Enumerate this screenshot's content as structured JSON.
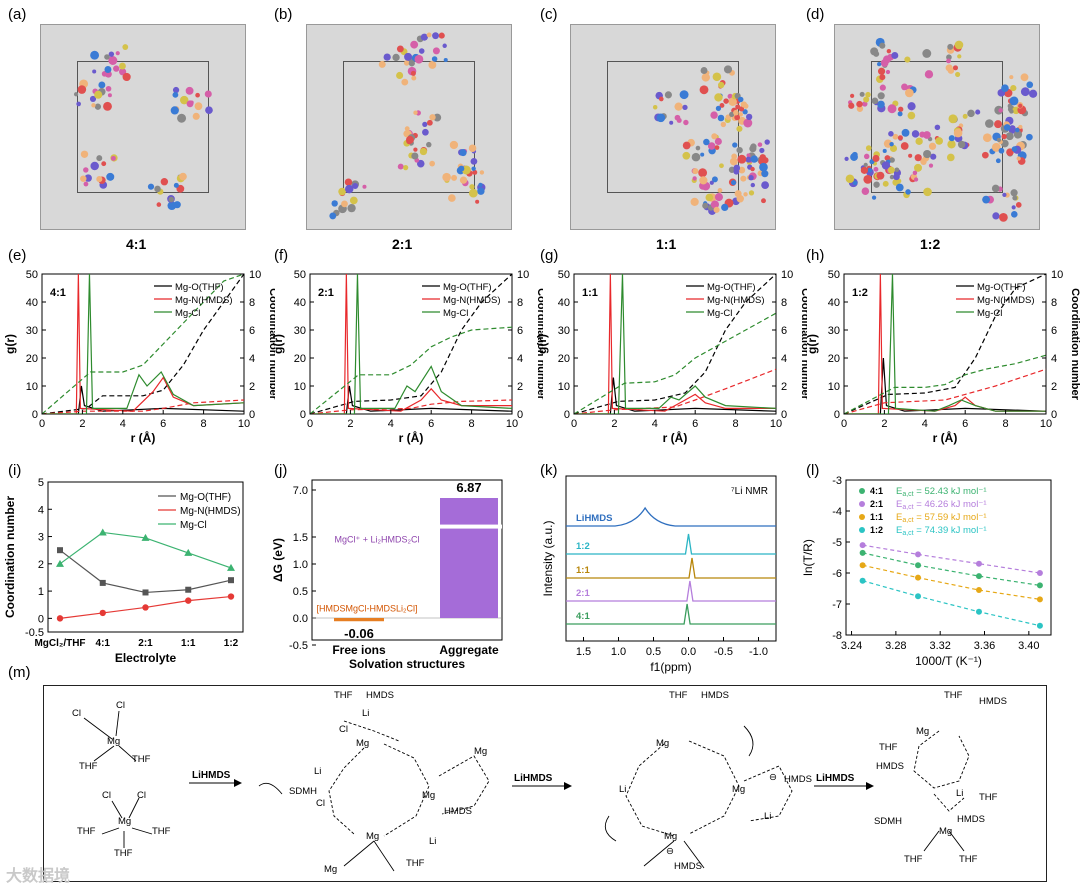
{
  "panels": {
    "a": {
      "label": "(a)",
      "caption": "4:1"
    },
    "b": {
      "label": "(b)",
      "caption": "2:1"
    },
    "c": {
      "label": "(c)",
      "caption": "1:1"
    },
    "d": {
      "label": "(d)",
      "caption": "1:2"
    },
    "e": {
      "label": "(e)"
    },
    "f": {
      "label": "(f)"
    },
    "g": {
      "label": "(g)"
    },
    "h": {
      "label": "(h)"
    },
    "i": {
      "label": "(i)"
    },
    "j": {
      "label": "(j)"
    },
    "k": {
      "label": "(k)"
    },
    "l": {
      "label": "(l)"
    },
    "m": {
      "label": "(m)"
    }
  },
  "chart_data": [
    {
      "type": "line",
      "id": "e",
      "ratio": "4:1",
      "xlabel": "r (Å)",
      "ylabel": "g(r)",
      "y2label": "Coordination number",
      "xlim": [
        0,
        10
      ],
      "ylim": [
        0,
        50
      ],
      "y2lim": [
        0,
        10
      ],
      "legend": [
        "Mg-O(THF)",
        "Mg-N(HMDS)",
        "Mg-Cl"
      ],
      "xticks": [
        "0",
        "2",
        "4",
        "6",
        "8",
        "10"
      ],
      "yticks": [
        "0",
        "10",
        "20",
        "30",
        "40",
        "50"
      ],
      "y2ticks": [
        "0",
        "2",
        "4",
        "6",
        "8",
        "10"
      ],
      "gr": {
        "O": [
          [
            0,
            0
          ],
          [
            1.8,
            0
          ],
          [
            1.95,
            10
          ],
          [
            2.1,
            3
          ],
          [
            3,
            1
          ],
          [
            6,
            2
          ],
          [
            10,
            1
          ]
        ],
        "N": [
          [
            0,
            0
          ],
          [
            1.7,
            0
          ],
          [
            1.8,
            50
          ],
          [
            1.9,
            2
          ],
          [
            4.5,
            1
          ],
          [
            5.5,
            8
          ],
          [
            6,
            13
          ],
          [
            6.5,
            6
          ],
          [
            7.5,
            3
          ],
          [
            10,
            4
          ]
        ],
        "Cl": [
          [
            0,
            0
          ],
          [
            2.2,
            0
          ],
          [
            2.35,
            50
          ],
          [
            2.5,
            2
          ],
          [
            4.2,
            2
          ],
          [
            4.8,
            14
          ],
          [
            5.2,
            10
          ],
          [
            5.9,
            15
          ],
          [
            6.5,
            7
          ],
          [
            7.5,
            3
          ],
          [
            10,
            4
          ]
        ]
      },
      "cn": {
        "O": [
          [
            0,
            0
          ],
          [
            2.2,
            0.4
          ],
          [
            3,
            1.3
          ],
          [
            5,
            1.3
          ],
          [
            6,
            1.7
          ],
          [
            7,
            3.5
          ],
          [
            8,
            6
          ],
          [
            9,
            8
          ],
          [
            10,
            10
          ]
        ],
        "N": [
          [
            0,
            0
          ],
          [
            2,
            0.2
          ],
          [
            3,
            0.2
          ],
          [
            5,
            0.2
          ],
          [
            6,
            0.4
          ],
          [
            7.5,
            0.8
          ],
          [
            10,
            1
          ]
        ],
        "Cl": [
          [
            0,
            0
          ],
          [
            2.4,
            3
          ],
          [
            4,
            3
          ],
          [
            5,
            3.5
          ],
          [
            6,
            5
          ],
          [
            7,
            6.5
          ],
          [
            8,
            8
          ],
          [
            9,
            9.5
          ],
          [
            10,
            10
          ]
        ]
      }
    },
    {
      "type": "line",
      "id": "f",
      "ratio": "2:1",
      "xlabel": "r (Å)",
      "ylabel": "g(r)",
      "y2label": "Coordination number",
      "xlim": [
        0,
        10
      ],
      "ylim": [
        0,
        50
      ],
      "y2lim": [
        0,
        10
      ],
      "legend": [
        "Mg-O(THF)",
        "Mg-N(HMDS)",
        "Mg-Cl"
      ],
      "xticks": [
        "0",
        "2",
        "4",
        "6",
        "8",
        "10"
      ],
      "yticks": [
        "0",
        "10",
        "20",
        "30",
        "40",
        "50"
      ],
      "y2ticks": [
        "0",
        "2",
        "4",
        "6",
        "8",
        "10"
      ],
      "gr": {
        "O": [
          [
            0,
            0
          ],
          [
            1.8,
            0
          ],
          [
            1.95,
            10
          ],
          [
            2.1,
            3
          ],
          [
            3,
            1
          ],
          [
            6,
            2
          ],
          [
            10,
            1
          ]
        ],
        "N": [
          [
            0,
            0
          ],
          [
            1.7,
            0
          ],
          [
            1.8,
            50
          ],
          [
            1.9,
            2
          ],
          [
            4.5,
            1
          ],
          [
            5.5,
            5
          ],
          [
            6,
            9
          ],
          [
            6.5,
            5
          ],
          [
            7.5,
            3
          ],
          [
            10,
            3
          ]
        ],
        "Cl": [
          [
            0,
            0
          ],
          [
            2.2,
            0
          ],
          [
            2.35,
            50
          ],
          [
            2.5,
            2
          ],
          [
            4.2,
            2
          ],
          [
            4.8,
            10
          ],
          [
            5.2,
            8
          ],
          [
            6,
            17
          ],
          [
            6.5,
            8
          ],
          [
            7.5,
            3
          ],
          [
            10,
            2
          ]
        ]
      },
      "cn": {
        "O": [
          [
            0,
            0
          ],
          [
            2.2,
            0.9
          ],
          [
            4,
            1
          ],
          [
            5.5,
            1.3
          ],
          [
            6.5,
            3
          ],
          [
            7.5,
            6
          ],
          [
            8.5,
            8
          ],
          [
            10,
            10
          ]
        ],
        "N": [
          [
            0,
            0
          ],
          [
            2,
            0.3
          ],
          [
            5,
            0.4
          ],
          [
            6,
            0.7
          ],
          [
            7.5,
            0.9
          ],
          [
            10,
            1
          ]
        ],
        "Cl": [
          [
            0,
            0
          ],
          [
            2.4,
            2.8
          ],
          [
            4,
            2.8
          ],
          [
            5,
            3.5
          ],
          [
            6,
            4.8
          ],
          [
            7,
            5.5
          ],
          [
            8,
            6
          ],
          [
            10,
            6.2
          ]
        ]
      }
    },
    {
      "type": "line",
      "id": "g",
      "ratio": "1:1",
      "xlabel": "r (Å)",
      "ylabel": "g(r)",
      "y2label": "Coordination number",
      "xlim": [
        0,
        10
      ],
      "ylim": [
        0,
        50
      ],
      "y2lim": [
        0,
        10
      ],
      "legend": [
        "Mg-O(THF)",
        "Mg-N(HMDS)",
        "Mg-Cl"
      ],
      "xticks": [
        "0",
        "2",
        "4",
        "6",
        "8",
        "10"
      ],
      "yticks": [
        "0",
        "10",
        "20",
        "30",
        "40",
        "50"
      ],
      "y2ticks": [
        "0",
        "2",
        "4",
        "6",
        "8",
        "10"
      ],
      "gr": {
        "O": [
          [
            0,
            0
          ],
          [
            1.8,
            0
          ],
          [
            1.95,
            13
          ],
          [
            2.1,
            3
          ],
          [
            3,
            1
          ],
          [
            6,
            2
          ],
          [
            10,
            1
          ]
        ],
        "N": [
          [
            0,
            0
          ],
          [
            1.7,
            0
          ],
          [
            1.8,
            50
          ],
          [
            1.9,
            2
          ],
          [
            4.5,
            1
          ],
          [
            5.5,
            5
          ],
          [
            6,
            7
          ],
          [
            6.5,
            4
          ],
          [
            7.5,
            2
          ],
          [
            10,
            2
          ]
        ],
        "Cl": [
          [
            0,
            0
          ],
          [
            2.2,
            0
          ],
          [
            2.4,
            50
          ],
          [
            2.55,
            2
          ],
          [
            4.2,
            2
          ],
          [
            4.8,
            6
          ],
          [
            5.2,
            5
          ],
          [
            6,
            10
          ],
          [
            6.5,
            6
          ],
          [
            7.5,
            3
          ],
          [
            10,
            2
          ]
        ]
      },
      "cn": {
        "O": [
          [
            0,
            0
          ],
          [
            2.2,
            0.9
          ],
          [
            4,
            1
          ],
          [
            5.5,
            1.5
          ],
          [
            6.5,
            3
          ],
          [
            7.5,
            6
          ],
          [
            8.5,
            8
          ],
          [
            10,
            10
          ]
        ],
        "N": [
          [
            0,
            0
          ],
          [
            2,
            0.3
          ],
          [
            5,
            0.5
          ],
          [
            6,
            1
          ],
          [
            7.5,
            1.8
          ],
          [
            10,
            3.2
          ]
        ],
        "Cl": [
          [
            0,
            0
          ],
          [
            2.5,
            2.2
          ],
          [
            4,
            2.3
          ],
          [
            5,
            2.8
          ],
          [
            6,
            4
          ],
          [
            7,
            4.8
          ],
          [
            8.5,
            6
          ],
          [
            10,
            7.2
          ]
        ]
      }
    },
    {
      "type": "line",
      "id": "h",
      "ratio": "1:2",
      "xlabel": "r (Å)",
      "ylabel": "g(r)",
      "y2label": "Coordination number",
      "xlim": [
        0,
        10
      ],
      "ylim": [
        0,
        50
      ],
      "y2lim": [
        0,
        10
      ],
      "legend": [
        "Mg-O(THF)",
        "Mg-N(HMDS)",
        "Mg-Cl"
      ],
      "xticks": [
        "0",
        "2",
        "4",
        "6",
        "8",
        "10"
      ],
      "yticks": [
        "0",
        "10",
        "20",
        "30",
        "40",
        "50"
      ],
      "y2ticks": [
        "0",
        "2",
        "4",
        "6",
        "8",
        "10"
      ],
      "gr": {
        "O": [
          [
            0,
            0
          ],
          [
            1.8,
            0
          ],
          [
            1.95,
            20
          ],
          [
            2.1,
            3
          ],
          [
            3,
            1
          ],
          [
            6,
            2
          ],
          [
            10,
            1
          ]
        ],
        "N": [
          [
            0,
            0
          ],
          [
            1.7,
            0
          ],
          [
            1.8,
            50
          ],
          [
            1.9,
            2
          ],
          [
            4.5,
            1
          ],
          [
            5.5,
            3
          ],
          [
            6,
            6
          ],
          [
            6.5,
            3
          ],
          [
            7.5,
            1
          ],
          [
            10,
            1
          ]
        ],
        "Cl": [
          [
            0,
            0
          ],
          [
            2.2,
            0
          ],
          [
            2.4,
            50
          ],
          [
            2.55,
            2
          ],
          [
            4.5,
            1
          ],
          [
            5.2,
            3
          ],
          [
            5.8,
            5
          ],
          [
            6.5,
            3
          ],
          [
            7.5,
            1
          ],
          [
            10,
            1
          ]
        ]
      },
      "cn": {
        "O": [
          [
            0,
            0
          ],
          [
            2.2,
            1.4
          ],
          [
            4,
            1.5
          ],
          [
            5.5,
            1.9
          ],
          [
            6.5,
            4
          ],
          [
            7.5,
            7
          ],
          [
            8.5,
            9
          ],
          [
            10,
            10
          ]
        ],
        "N": [
          [
            0,
            0
          ],
          [
            2,
            0.8
          ],
          [
            5,
            1
          ],
          [
            6,
            1.4
          ],
          [
            7.5,
            2
          ],
          [
            10,
            3.2
          ]
        ],
        "Cl": [
          [
            0,
            0
          ],
          [
            2.5,
            1.9
          ],
          [
            4,
            1.9
          ],
          [
            5,
            2.1
          ],
          [
            6,
            2.8
          ],
          [
            7,
            3.2
          ],
          [
            8.5,
            3.6
          ],
          [
            10,
            4.2
          ]
        ]
      }
    },
    {
      "type": "line",
      "id": "i",
      "xlabel": "Electrolyte",
      "ylabel": "Coordination number",
      "categories": [
        "MgCl₂/THF",
        "4:1",
        "2:1",
        "1:1",
        "1:2"
      ],
      "ylim": [
        -0.5,
        5
      ],
      "yticks": [
        "-0.5",
        "0",
        "1",
        "2",
        "3",
        "4",
        "5"
      ],
      "series": [
        {
          "name": "Mg-O(THF)",
          "color": "#555555",
          "values": [
            2.5,
            1.3,
            0.95,
            1.05,
            1.4
          ]
        },
        {
          "name": "Mg-N(HMDS)",
          "color": "#e53935",
          "values": [
            0,
            0.2,
            0.4,
            0.65,
            0.8
          ]
        },
        {
          "name": "Mg-Cl",
          "color": "#3cb371",
          "values": [
            2.0,
            3.15,
            2.95,
            2.4,
            1.85
          ]
        }
      ]
    },
    {
      "type": "bar",
      "id": "j",
      "xlabel": "Solvation structures",
      "ylabel": "ΔG (eV)",
      "categories": [
        "Free ions",
        "Aggregate"
      ],
      "values": [
        -0.06,
        6.87
      ],
      "value_labels": [
        "-0.06",
        "6.87"
      ],
      "colors": [
        "#e67e22",
        "#a56cd8"
      ],
      "yticks": [
        "-0.5",
        "0.0",
        "0.5",
        "1.0",
        "1.5",
        "7.0"
      ],
      "annotations": [
        "MgCl⁺ + Li₂HMDS₂Cl",
        "[HMDSMgCl-HMDSLi₂Cl]"
      ]
    },
    {
      "type": "line",
      "id": "k",
      "xlabel": "f1(ppm)",
      "ylabel": "Intensity (a.u.)",
      "title": "⁷Li NMR",
      "xticks": [
        "1.5",
        "1.0",
        "0.5",
        "0.0",
        "-0.5",
        "-1.0"
      ],
      "series": [
        {
          "name": "LiHMDS",
          "color": "#2f6fbf",
          "peak": 0.62
        },
        {
          "name": "1:2",
          "color": "#2bb5c5",
          "peak": 0.0
        },
        {
          "name": "1:1",
          "color": "#b8860b",
          "peak": -0.05
        },
        {
          "name": "2:1",
          "color": "#b57edc",
          "peak": -0.02
        },
        {
          "name": "4:1",
          "color": "#3a9d5d",
          "peak": 0.02
        }
      ]
    },
    {
      "type": "scatter",
      "id": "l",
      "xlabel": "1000/T (K⁻¹)",
      "ylabel": "ln(T/R)",
      "xlim": [
        3.235,
        3.42
      ],
      "ylim": [
        -8,
        -3
      ],
      "xticks": [
        "3.24",
        "3.28",
        "3.32",
        "3.36",
        "3.40"
      ],
      "yticks": [
        "-8",
        "-7",
        "-6",
        "-5",
        "-4",
        "-3"
      ],
      "x": [
        3.25,
        3.3,
        3.355,
        3.41
      ],
      "series": [
        {
          "name": "4:1",
          "color": "#3cb371",
          "values": [
            -5.35,
            -5.75,
            -6.1,
            -6.4
          ],
          "ea": "E",
          "eaval": "= 52.43 kJ mol⁻¹"
        },
        {
          "name": "2:1",
          "color": "#b57edc",
          "values": [
            -5.1,
            -5.4,
            -5.7,
            -6.0
          ],
          "ea": "E",
          "eaval": "= 46.26 kJ mol⁻¹"
        },
        {
          "name": "1:1",
          "color": "#e6a817",
          "values": [
            -5.75,
            -6.15,
            -6.55,
            -6.85
          ],
          "ea": "E",
          "eaval": "= 57.59 kJ mol⁻¹"
        },
        {
          "name": "1:2",
          "color": "#2bc4c4",
          "values": [
            -6.25,
            -6.75,
            -7.25,
            -7.7
          ],
          "ea": "E",
          "eaval": "= 74.39 kJ mol⁻¹"
        }
      ]
    }
  ],
  "scheme": {
    "arrow1": "LiHMDS",
    "arrow2": "LiHMDS",
    "arrow3": "LiHMDS",
    "labels": {
      "thf": "THF",
      "cl": "Cl",
      "mg": "Mg",
      "li": "Li",
      "hmds": "HMDS",
      "sdmh": "SDMH",
      "minus": "⊖"
    }
  },
  "watermark": "大数据境"
}
